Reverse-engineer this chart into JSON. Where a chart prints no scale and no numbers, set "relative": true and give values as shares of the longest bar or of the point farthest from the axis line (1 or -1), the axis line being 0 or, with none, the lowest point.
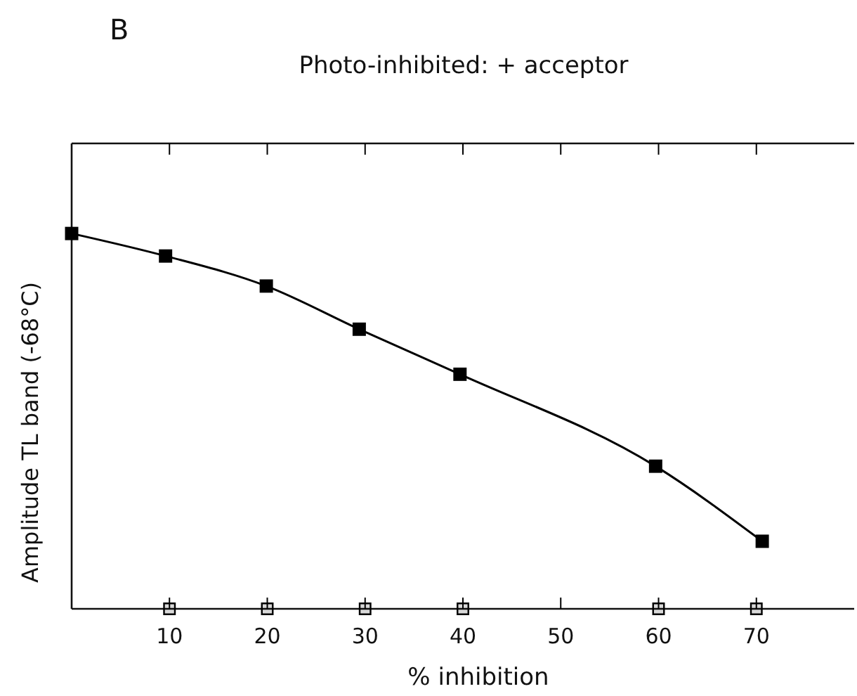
{
  "chart_data": {
    "type": "line",
    "title": "Photo-inhibited: + acceptor",
    "xlabel": "% inhibition",
    "ylabel": "Amplitude  TL band (-68°C)",
    "annotations": [
      "B"
    ],
    "relative": true,
    "xlim": [
      0,
      80
    ],
    "xticks": [
      10,
      20,
      30,
      40,
      50,
      60,
      70
    ],
    "marker": "square",
    "line_style": "solid",
    "series": [
      {
        "type": "line",
        "color": "#000000",
        "x": [
          0,
          9.6,
          19.9,
          29.4,
          39.7,
          59.7,
          70.6
        ],
        "values": [
          1,
          0.94,
          0.86,
          0.745,
          0.625,
          0.38,
          0.18
        ]
      },
      {
        "type": "scatter",
        "color": "#000000",
        "x": [
          10,
          20,
          30,
          40,
          60,
          70
        ],
        "values": [
          0,
          0,
          0,
          0,
          0,
          0
        ]
      }
    ]
  }
}
